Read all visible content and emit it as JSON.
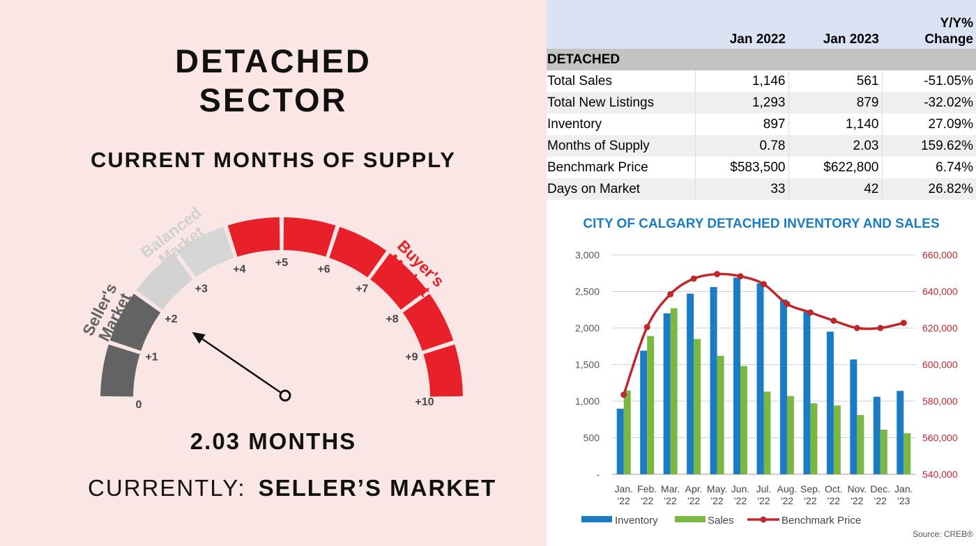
{
  "left_panel": {
    "title_line1": "DETACHED",
    "title_line2": "SECTOR",
    "subtitle": "CURRENT MONTHS OF SUPPLY",
    "gauge": {
      "value": 2.03,
      "min": 0,
      "max": 10,
      "tick_labels": [
        "0",
        "+1",
        "+2",
        "+3",
        "+4",
        "+5",
        "+6",
        "+7",
        "+8",
        "+9",
        "+10"
      ],
      "zone_sellers": "Seller's\nMarket",
      "zone_balanced": "Balanced\nMarket",
      "zone_buyers": "Buyer's\nMarket",
      "colors": {
        "sellers": "#636363",
        "balanced": "#d6d6d6",
        "buyers": "#e8202a"
      }
    },
    "value_text": "2.03 MONTHS",
    "status_prefix": "CURRENTLY:",
    "status_value": "SELLER’S MARKET"
  },
  "table": {
    "headers": [
      "",
      "Jan 2022",
      "Jan 2023",
      "Y/Y%\nChange"
    ],
    "section": "DETACHED",
    "rows": [
      [
        "Total Sales",
        "1,146",
        "561",
        "-51.05%"
      ],
      [
        "Total New Listings",
        "1,293",
        "879",
        "-32.02%"
      ],
      [
        "Inventory",
        "897",
        "1,140",
        "27.09%"
      ],
      [
        "Months of Supply",
        "0.78",
        "2.03",
        "159.62%"
      ],
      [
        "Benchmark Price",
        "$583,500",
        "$622,800",
        "6.74%"
      ],
      [
        "Days on Market",
        "33",
        "42",
        "26.82%"
      ]
    ]
  },
  "chart_data": {
    "type": "bar",
    "title": "CITY OF CALGARY DETACHED INVENTORY AND SALES",
    "categories": [
      "Jan.\n'22",
      "Feb.\n'22",
      "Mar.\n'22",
      "Apr.\n'22",
      "May.\n'22",
      "Jun.\n'22",
      "Jul.\n'22",
      "Aug.\n'22",
      "Sep.\n'22",
      "Oct.\n'22",
      "Nov.\n'22",
      "Dec.\n'22",
      "Jan.\n'23"
    ],
    "series": [
      {
        "name": "Inventory",
        "type": "bar",
        "axis": "left",
        "color": "#1a7cc4",
        "values": [
          897,
          1690,
          2200,
          2470,
          2560,
          2690,
          2610,
          2390,
          2220,
          1950,
          1570,
          1060,
          1140
        ]
      },
      {
        "name": "Sales",
        "type": "bar",
        "axis": "left",
        "color": "#7bb842",
        "values": [
          1146,
          1890,
          2270,
          1850,
          1620,
          1480,
          1130,
          1070,
          970,
          940,
          810,
          610,
          561
        ]
      },
      {
        "name": "Benchmark Price",
        "type": "line",
        "axis": "right",
        "color": "#c0272d",
        "values": [
          583500,
          620500,
          638500,
          647000,
          649500,
          648300,
          644000,
          633200,
          628500,
          624000,
          620000,
          620000,
          622800
        ]
      }
    ],
    "left_axis": {
      "ylim": [
        0,
        3000
      ],
      "ticks": [
        "-",
        "500",
        "1,000",
        "1,500",
        "2,000",
        "2,500",
        "3,000"
      ]
    },
    "right_axis": {
      "ylim": [
        540000,
        660000
      ],
      "ticks": [
        "540,000",
        "560,000",
        "580,000",
        "600,000",
        "620,000",
        "640,000",
        "660,000"
      ],
      "color": "#c0272d"
    },
    "grid": true,
    "legend_placement": "bottom",
    "source": "Source: CREB®",
    "title_color": "#1a7cc4"
  }
}
